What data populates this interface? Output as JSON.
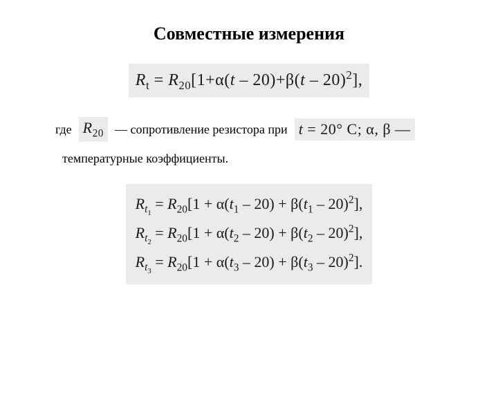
{
  "title": "Совместные измерения",
  "mainFormula": {
    "lhs_var": "R",
    "lhs_sub": "t",
    "rhs_var": "R",
    "rhs_sub": "20",
    "body_open": "[1+α(",
    "t": "t",
    "m20": " – 20)+β(",
    "t2": "t",
    "close": " – 20)",
    "sq": "2",
    "end": "],"
  },
  "expl": {
    "where": "где",
    "r20_var": "R",
    "r20_sub": "20",
    "resistText": "— сопротивление резистора при",
    "cond_t": "t",
    "cond_eq": " = 20° C; α, β —",
    "line2": "температурные коэффициенты."
  },
  "system": {
    "rows": [
      {
        "lhs_sub": "1",
        "t_sub": "1",
        "tail": ","
      },
      {
        "lhs_sub": "2",
        "t_sub": "2",
        "tail": ","
      },
      {
        "lhs_sub": "3",
        "t_sub": "3",
        "tail": "."
      }
    ],
    "R": "R",
    "R20": "20",
    "open": "[1 + α(",
    "t": "t",
    "mid": " – 20) + β(",
    "close": " – 20)",
    "sq": "2",
    "br": "]"
  }
}
